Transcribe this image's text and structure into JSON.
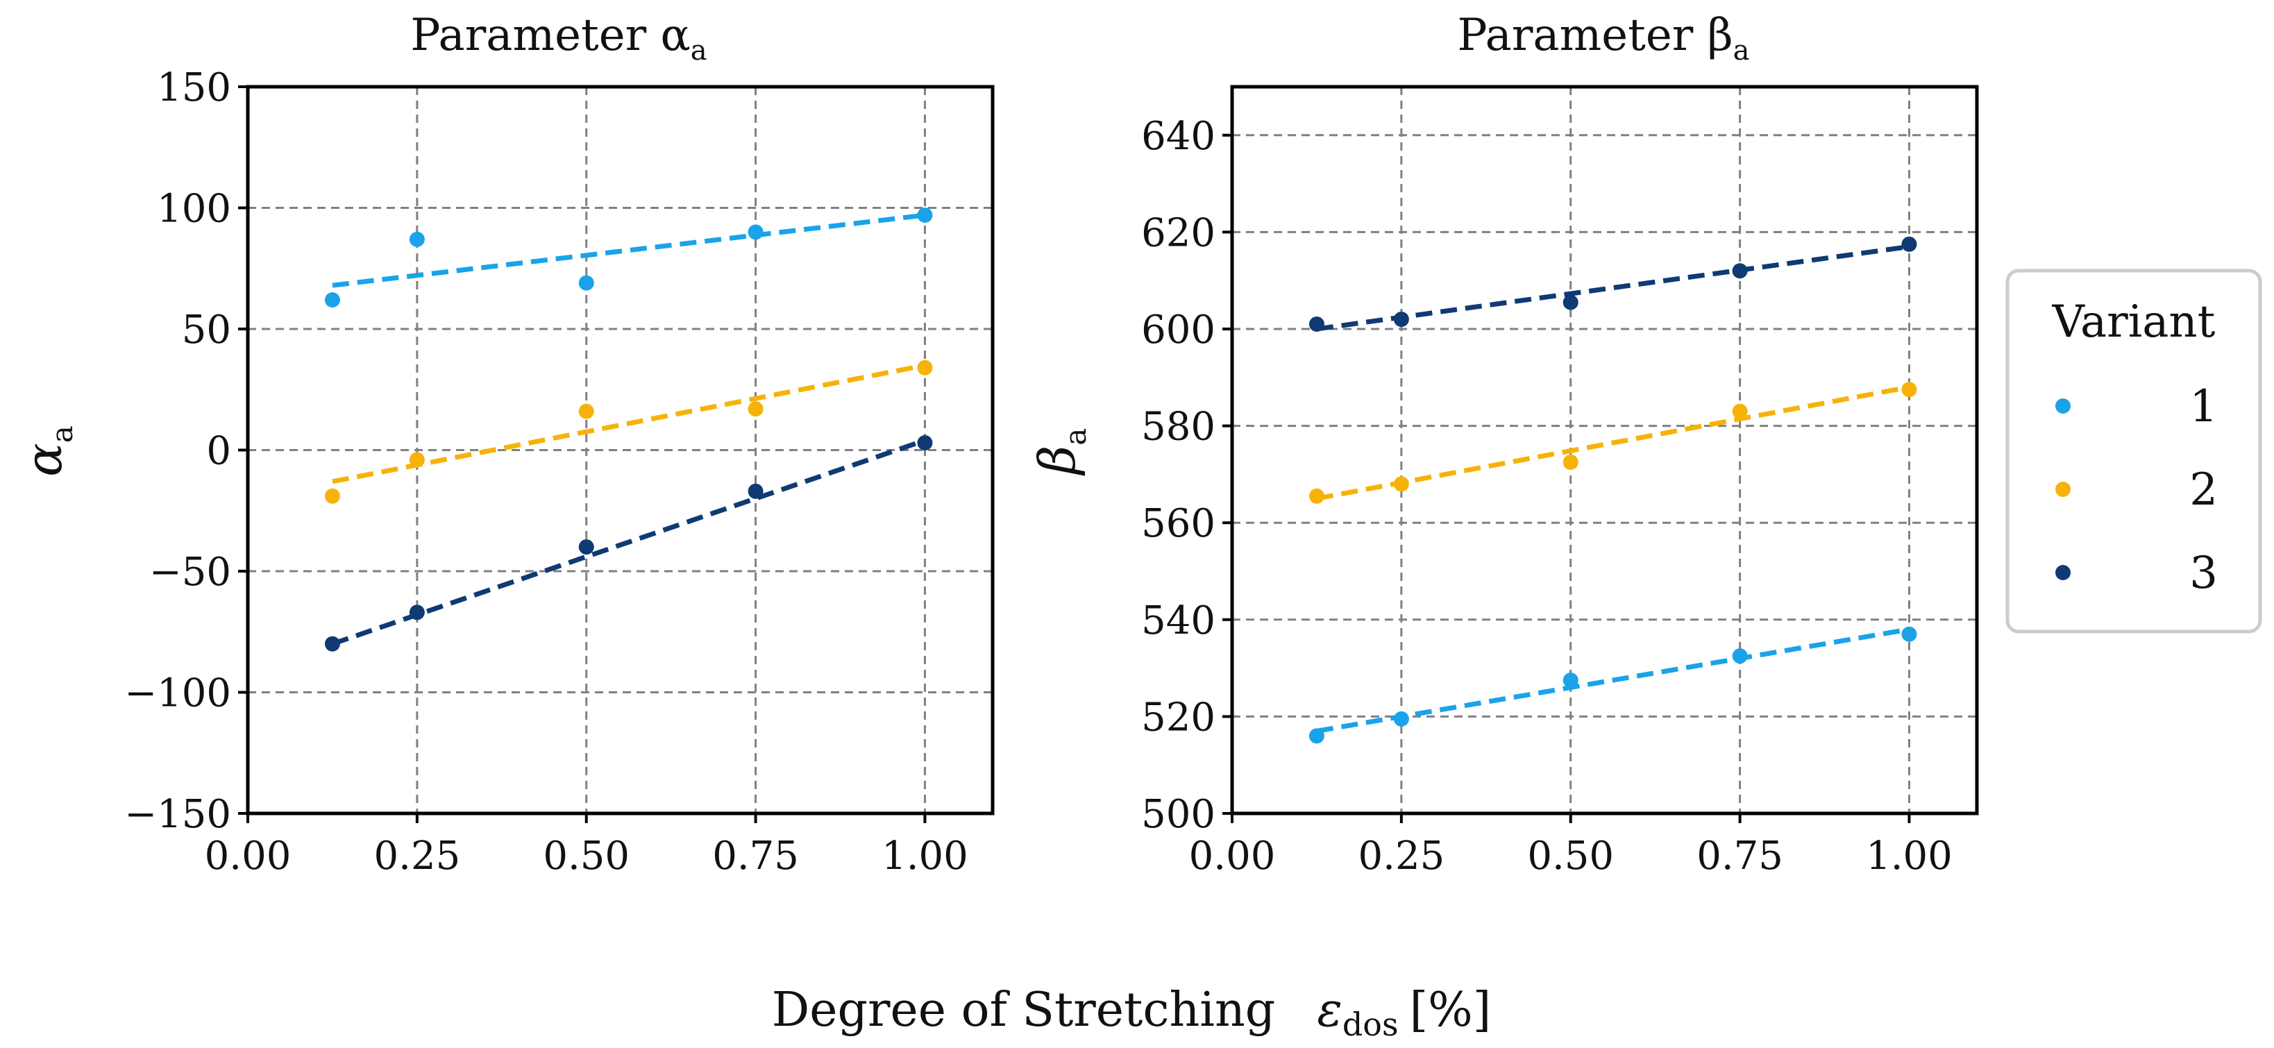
{
  "chart_data": [
    {
      "type": "scatter",
      "title": "Parameter α",
      "title_subscript": "a",
      "ylabel": "α",
      "ylabel_subscript": "a",
      "x_ticks": [
        "0.00",
        "0.25",
        "0.50",
        "0.75",
        "1.00"
      ],
      "y_ticks": [
        "−150",
        "−100",
        "−50",
        "0",
        "50",
        "100",
        "150"
      ],
      "x_tick_values": [
        0.0,
        0.25,
        0.5,
        0.75,
        1.0
      ],
      "y_tick_values": [
        -150,
        -100,
        -50,
        0,
        50,
        100,
        150
      ],
      "xlim": [
        0.0,
        1.1
      ],
      "ylim": [
        -150,
        150
      ],
      "grid": true,
      "series": [
        {
          "name": "1",
          "x": [
            0.125,
            0.25,
            0.5,
            0.75,
            1.0
          ],
          "y": [
            62,
            87,
            69,
            90,
            97
          ],
          "fit": [
            68,
            97
          ]
        },
        {
          "name": "2",
          "x": [
            0.125,
            0.25,
            0.5,
            0.75,
            1.0
          ],
          "y": [
            -19,
            -4,
            16,
            17,
            34
          ],
          "fit": [
            -13,
            35
          ]
        },
        {
          "name": "3",
          "x": [
            0.125,
            0.25,
            0.5,
            0.75,
            1.0
          ],
          "y": [
            -80,
            -67,
            -40,
            -17,
            3
          ],
          "fit": [
            -80,
            4
          ]
        }
      ]
    },
    {
      "type": "scatter",
      "title": "Parameter β",
      "title_subscript": "a",
      "ylabel": "β",
      "ylabel_subscript": "a",
      "x_ticks": [
        "0.00",
        "0.25",
        "0.50",
        "0.75",
        "1.00"
      ],
      "y_ticks": [
        "500",
        "520",
        "540",
        "560",
        "580",
        "600",
        "620",
        "640"
      ],
      "x_tick_values": [
        0.0,
        0.25,
        0.5,
        0.75,
        1.0
      ],
      "y_tick_values": [
        500,
        520,
        540,
        560,
        580,
        600,
        620,
        640
      ],
      "xlim": [
        0.0,
        1.1
      ],
      "ylim": [
        500,
        650
      ],
      "grid": true,
      "series": [
        {
          "name": "1",
          "x": [
            0.125,
            0.25,
            0.5,
            0.75,
            1.0
          ],
          "y": [
            516,
            519.5,
            527.5,
            532.5,
            537
          ],
          "fit": [
            517,
            538
          ]
        },
        {
          "name": "2",
          "x": [
            0.125,
            0.25,
            0.5,
            0.75,
            1.0
          ],
          "y": [
            565.5,
            568,
            572.5,
            583,
            587.5
          ],
          "fit": [
            565,
            588
          ]
        },
        {
          "name": "3",
          "x": [
            0.125,
            0.25,
            0.5,
            0.75,
            1.0
          ],
          "y": [
            601,
            602,
            605.5,
            612,
            617.5
          ],
          "fit": [
            600,
            617
          ]
        }
      ]
    }
  ],
  "figure": {
    "xlabel": "Degree of Stretching",
    "xlabel_symbol": "ε",
    "xlabel_symbol_subscript": "dos",
    "xlabel_unit": "[%]"
  },
  "legend": {
    "title": "Variant",
    "placement": "right",
    "entries": [
      "1",
      "2",
      "3"
    ]
  },
  "colors": {
    "1": "#1aa3e8",
    "2": "#f7b20a",
    "3": "#0f3a73"
  }
}
